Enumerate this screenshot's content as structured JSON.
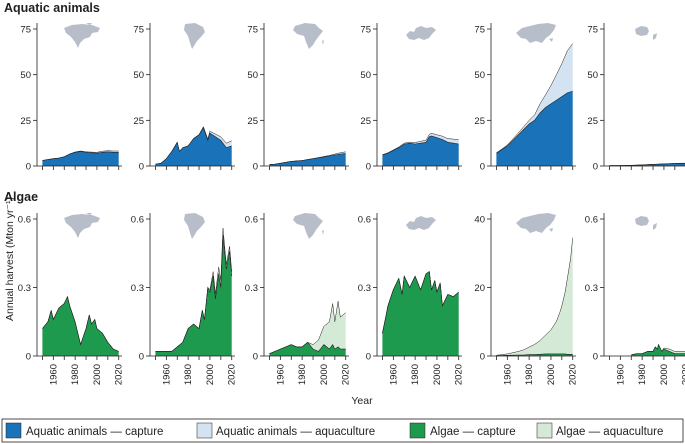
{
  "figure": {
    "row_titles": [
      "Aquatic animals",
      "Algae"
    ],
    "ylabel": "Annual harvest (Mton yr⁻¹)",
    "xlabel": "Year"
  },
  "legend": [
    {
      "label": "Aquatic animals — capture",
      "color": "#1a73b8"
    },
    {
      "label": "Aquatic animals — aquaculture",
      "color": "#d3e3f1"
    },
    {
      "label": "Algae — capture",
      "color": "#1e9a4e"
    },
    {
      "label": "Algae — aquaculture",
      "color": "#d5ead6"
    }
  ],
  "colors": {
    "animal_capture": "#1a73b8",
    "animal_aquaculture": "#d3e3f1",
    "algae_capture": "#1e9a4e",
    "algae_aquaculture": "#d5ead6",
    "map_silhouette": "#b8bec9",
    "outline": "#231f20"
  },
  "chart_data": [
    {
      "type": "area",
      "row": "Aquatic animals",
      "region_icon": "north-america-map-icon",
      "x": [
        1950,
        1955,
        1960,
        1965,
        1970,
        1975,
        1980,
        1985,
        1990,
        1995,
        2000,
        2005,
        2010,
        2015,
        2020
      ],
      "series": [
        {
          "name": "Aquatic animals — capture",
          "values": [
            3,
            3.5,
            4,
            4.3,
            5,
            6.5,
            7.5,
            8,
            7.5,
            7.2,
            7,
            7.5,
            7.8,
            7.5,
            7.5
          ]
        },
        {
          "name": "Aquatic animals — aquaculture",
          "values": [
            0.05,
            0.05,
            0.05,
            0.05,
            0.1,
            0.1,
            0.15,
            0.2,
            0.3,
            0.4,
            0.5,
            0.6,
            0.6,
            0.7,
            0.7
          ]
        }
      ],
      "ylim": [
        0,
        75
      ],
      "yticks": [
        0,
        25,
        50,
        75
      ],
      "xticks": []
    },
    {
      "type": "area",
      "row": "Aquatic animals",
      "region_icon": "south-america-map-icon",
      "x": [
        1950,
        1955,
        1960,
        1965,
        1970,
        1972,
        1975,
        1980,
        1985,
        1990,
        1994,
        1998,
        2000,
        2005,
        2010,
        2015,
        2020
      ],
      "series": [
        {
          "name": "Aquatic animals — capture",
          "values": [
            1,
            1.5,
            4,
            8,
            13,
            8,
            10,
            11,
            15,
            17,
            21,
            14,
            18,
            16,
            14,
            10,
            11
          ]
        },
        {
          "name": "Aquatic animals — aquaculture",
          "values": [
            0,
            0,
            0,
            0,
            0,
            0,
            0,
            0,
            0.1,
            0.2,
            0.5,
            0.8,
            1,
            1.5,
            2,
            2.5,
            2.8
          ]
        }
      ],
      "ylim": [
        0,
        75
      ],
      "yticks": [
        0,
        25,
        50,
        75
      ],
      "xticks": []
    },
    {
      "type": "area",
      "row": "Aquatic animals",
      "region_icon": "africa-map-icon",
      "x": [
        1950,
        1955,
        1960,
        1965,
        1970,
        1975,
        1980,
        1985,
        1990,
        1995,
        2000,
        2005,
        2010,
        2015,
        2020
      ],
      "series": [
        {
          "name": "Aquatic animals — capture",
          "values": [
            0.8,
            1,
            1.5,
            2,
            2.5,
            2.8,
            3,
            3.5,
            4,
            4.5,
            5,
            5.5,
            6,
            6.5,
            6.8
          ]
        },
        {
          "name": "Aquatic animals — aquaculture",
          "values": [
            0,
            0,
            0,
            0,
            0,
            0,
            0,
            0,
            0.05,
            0.1,
            0.2,
            0.3,
            0.5,
            0.8,
            1
          ]
        }
      ],
      "ylim": [
        0,
        75
      ],
      "yticks": [
        0,
        25,
        50,
        75
      ],
      "xticks": []
    },
    {
      "type": "area",
      "row": "Aquatic animals",
      "region_icon": "europe-map-icon",
      "x": [
        1950,
        1955,
        1960,
        1965,
        1970,
        1975,
        1980,
        1985,
        1990,
        1993,
        1995,
        2000,
        2005,
        2010,
        2015,
        2020
      ],
      "series": [
        {
          "name": "Aquatic animals — capture",
          "values": [
            6,
            7,
            8.5,
            10,
            12,
            12.5,
            12,
            12.5,
            13,
            16,
            16.5,
            15.5,
            14.5,
            13,
            12.5,
            12
          ]
        },
        {
          "name": "Aquatic animals — aquaculture",
          "values": [
            0.2,
            0.2,
            0.3,
            0.4,
            0.5,
            0.6,
            0.8,
            1,
            1.2,
            1.3,
            1.4,
            1.6,
            1.8,
            2,
            2.2,
            2.4
          ]
        }
      ],
      "ylim": [
        0,
        75
      ],
      "yticks": [
        0,
        25,
        50,
        75
      ],
      "xticks": []
    },
    {
      "type": "area",
      "row": "Aquatic animals",
      "region_icon": "asia-map-icon",
      "x": [
        1950,
        1955,
        1960,
        1965,
        1970,
        1975,
        1980,
        1985,
        1990,
        1995,
        2000,
        2005,
        2010,
        2015,
        2020
      ],
      "series": [
        {
          "name": "Aquatic animals — capture",
          "values": [
            7,
            9,
            11,
            14,
            17,
            20,
            23,
            25,
            29,
            32,
            34,
            36,
            38,
            40,
            41
          ]
        },
        {
          "name": "Aquatic animals — aquaculture",
          "values": [
            0.2,
            0.3,
            0.5,
            0.8,
            1,
            1.5,
            2,
            3,
            5,
            7,
            10,
            14,
            18,
            23,
            26
          ]
        }
      ],
      "ylim": [
        0,
        75
      ],
      "yticks": [
        0,
        25,
        50,
        75
      ],
      "xticks": []
    },
    {
      "type": "area",
      "row": "Aquatic animals",
      "region_icon": "oceania-map-icon",
      "x": [
        1950,
        1960,
        1970,
        1980,
        1990,
        2000,
        2010,
        2020
      ],
      "series": [
        {
          "name": "Aquatic animals — capture",
          "values": [
            0.2,
            0.3,
            0.4,
            0.6,
            0.9,
            1.1,
            1.3,
            1.4
          ]
        },
        {
          "name": "Aquatic animals — aquaculture",
          "values": [
            0,
            0,
            0,
            0,
            0.05,
            0.1,
            0.15,
            0.2
          ]
        }
      ],
      "ylim": [
        0,
        75
      ],
      "yticks": [
        0,
        25,
        50,
        75
      ],
      "xticks": []
    },
    {
      "type": "area",
      "row": "Algae",
      "region_icon": "north-america-map-icon",
      "x": [
        1950,
        1955,
        1958,
        1960,
        1965,
        1970,
        1973,
        1975,
        1980,
        1985,
        1990,
        1993,
        1995,
        1998,
        2000,
        2005,
        2010,
        2015,
        2020
      ],
      "series": [
        {
          "name": "Algae — capture",
          "values": [
            0.12,
            0.15,
            0.2,
            0.16,
            0.21,
            0.23,
            0.26,
            0.22,
            0.15,
            0.05,
            0.12,
            0.18,
            0.14,
            0.16,
            0.12,
            0.1,
            0.06,
            0.03,
            0.02
          ]
        },
        {
          "name": "Algae — aquaculture",
          "values": [
            0,
            0,
            0,
            0,
            0,
            0,
            0,
            0,
            0,
            0,
            0,
            0,
            0,
            0,
            0,
            0,
            0,
            0,
            0
          ]
        }
      ],
      "ylim": [
        0,
        0.6
      ],
      "yticks": [
        0,
        0.3,
        0.6
      ],
      "xticks": [
        1960,
        1980,
        2000,
        2020
      ]
    },
    {
      "type": "area",
      "row": "Algae",
      "region_icon": "south-america-map-icon",
      "x": [
        1950,
        1960,
        1965,
        1970,
        1975,
        1980,
        1985,
        1990,
        1993,
        1995,
        1998,
        2000,
        2003,
        2005,
        2008,
        2010,
        2012,
        2015,
        2018,
        2020
      ],
      "series": [
        {
          "name": "Algae — capture",
          "values": [
            0.02,
            0.02,
            0.02,
            0.04,
            0.06,
            0.12,
            0.14,
            0.12,
            0.2,
            0.16,
            0.3,
            0.28,
            0.35,
            0.25,
            0.36,
            0.3,
            0.53,
            0.38,
            0.46,
            0.35
          ]
        },
        {
          "name": "Algae — aquaculture",
          "values": [
            0,
            0,
            0,
            0,
            0,
            0,
            0,
            0,
            0,
            0,
            0,
            0.01,
            0.02,
            0.02,
            0.03,
            0.03,
            0.03,
            0.02,
            0.02,
            0.02
          ]
        }
      ],
      "ylim": [
        0,
        0.6
      ],
      "yticks": [
        0,
        0.3,
        0.6
      ],
      "xticks": [
        1960,
        1980,
        2000,
        2020
      ]
    },
    {
      "type": "area",
      "row": "Algae",
      "region_icon": "africa-map-icon",
      "x": [
        1950,
        1955,
        1960,
        1965,
        1970,
        1975,
        1980,
        1985,
        1990,
        1995,
        2000,
        2005,
        2008,
        2010,
        2013,
        2015,
        2020
      ],
      "series": [
        {
          "name": "Algae — capture",
          "values": [
            0.01,
            0.02,
            0.03,
            0.04,
            0.05,
            0.04,
            0.04,
            0.06,
            0.03,
            0.02,
            0.05,
            0.03,
            0.05,
            0.03,
            0.04,
            0.03,
            0.03
          ]
        },
        {
          "name": "Algae — aquaculture",
          "values": [
            0,
            0,
            0,
            0,
            0,
            0,
            0,
            0,
            0.02,
            0.05,
            0.08,
            0.12,
            0.18,
            0.12,
            0.2,
            0.14,
            0.16
          ]
        }
      ],
      "ylim": [
        0,
        0.6
      ],
      "yticks": [
        0,
        0.3,
        0.6
      ],
      "xticks": [
        1960,
        1980,
        2000,
        2020
      ]
    },
    {
      "type": "area",
      "row": "Algae",
      "region_icon": "europe-map-icon",
      "x": [
        1950,
        1953,
        1955,
        1960,
        1965,
        1968,
        1970,
        1975,
        1980,
        1985,
        1990,
        1993,
        1995,
        1998,
        2000,
        2003,
        2005,
        2010,
        2015,
        2020
      ],
      "series": [
        {
          "name": "Algae — capture",
          "values": [
            0.1,
            0.17,
            0.22,
            0.29,
            0.34,
            0.27,
            0.35,
            0.3,
            0.35,
            0.29,
            0.36,
            0.37,
            0.29,
            0.33,
            0.28,
            0.32,
            0.22,
            0.27,
            0.26,
            0.28
          ]
        },
        {
          "name": "Algae — aquaculture",
          "values": [
            0,
            0,
            0,
            0,
            0,
            0,
            0,
            0,
            0,
            0,
            0,
            0,
            0,
            0,
            0,
            0,
            0,
            0,
            0,
            0
          ]
        }
      ],
      "ylim": [
        0,
        0.6
      ],
      "yticks": [
        0,
        0.3,
        0.6
      ],
      "xticks": [
        1960,
        1980,
        2000,
        2020
      ]
    },
    {
      "type": "area",
      "row": "Algae",
      "region_icon": "asia-map-icon",
      "x": [
        1950,
        1960,
        1970,
        1975,
        1980,
        1985,
        1990,
        1995,
        2000,
        2005,
        2008,
        2010,
        2013,
        2015,
        2018,
        2020
      ],
      "series": [
        {
          "name": "Algae — capture",
          "values": [
            0.1,
            0.2,
            0.3,
            0.3,
            0.4,
            0.4,
            0.5,
            0.6,
            0.6,
            0.6,
            0.6,
            0.6,
            0.6,
            0.5,
            0.5,
            0.5
          ]
        },
        {
          "name": "Algae — aquaculture",
          "values": [
            0.1,
            0.4,
            1,
            1.5,
            2.2,
            3,
            4,
            5.5,
            7,
            9.5,
            12,
            14,
            18,
            22,
            28,
            34
          ]
        }
      ],
      "ylim": [
        0,
        40
      ],
      "yticks": [
        0,
        20,
        40
      ],
      "xticks": [
        1960,
        1980,
        2000,
        2020
      ]
    },
    {
      "type": "area",
      "row": "Algae",
      "region_icon": "oceania-map-icon",
      "x": [
        1970,
        1975,
        1980,
        1985,
        1990,
        1992,
        1994,
        1995,
        1998,
        2000,
        2005,
        2010,
        2015,
        2020
      ],
      "series": [
        {
          "name": "Algae — capture",
          "values": [
            0.005,
            0.01,
            0.01,
            0.02,
            0.02,
            0.04,
            0.03,
            0.05,
            0.02,
            0.03,
            0.02,
            0.01,
            0.01,
            0.01
          ]
        },
        {
          "name": "Algae — aquaculture",
          "values": [
            0,
            0,
            0,
            0,
            0,
            0,
            0,
            0,
            0,
            0.005,
            0.01,
            0.01,
            0.01,
            0.01
          ]
        }
      ],
      "ylim": [
        0,
        0.6
      ],
      "yticks": [
        0,
        0.3,
        0.6
      ],
      "xticks": [
        1960,
        1980,
        2000,
        2020
      ]
    }
  ]
}
